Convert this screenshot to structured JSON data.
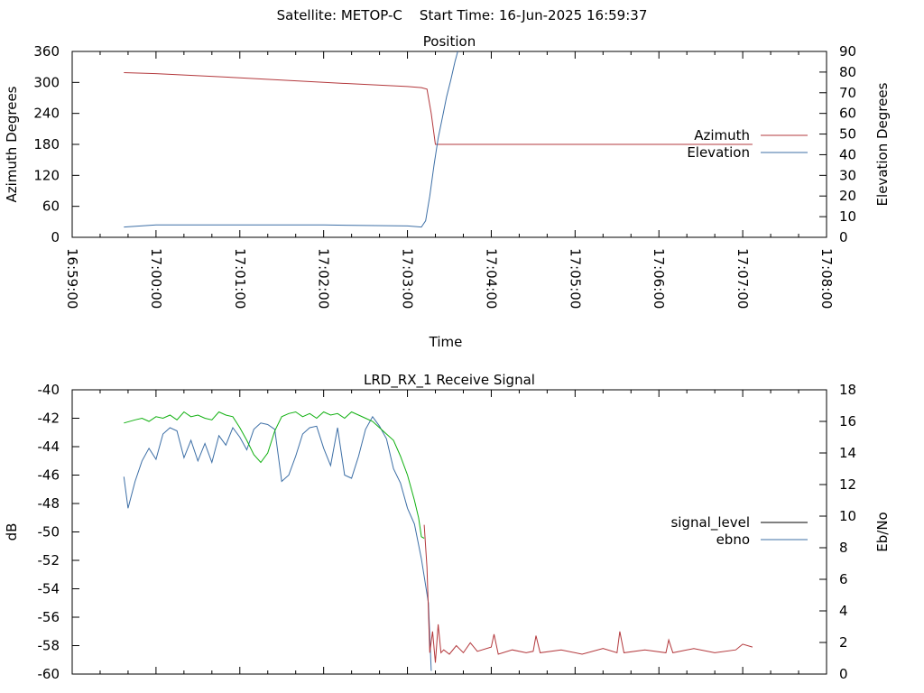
{
  "header": {
    "title": "Satellite: METOP-C    Start Time: 16-Jun-2025 16:59:37"
  },
  "colors": {
    "azimuth": "#b3383c",
    "elevation": "#3d6fa6",
    "signal_level_line": "#000000",
    "ebno_line": "#3d6fa6",
    "signal_level_trace": "#b3383c",
    "secondary_trace": "#10b010"
  },
  "chart_data": [
    {
      "type": "line",
      "title": "Position",
      "xlabel": "Time",
      "ylabel": "Azimuth Degrees",
      "y2label": "Elevation Degrees",
      "ylim": [
        0,
        360
      ],
      "y2lim": [
        0,
        90
      ],
      "yticks": [
        "0",
        "60",
        "120",
        "180",
        "240",
        "300",
        "360"
      ],
      "y2ticks": [
        "0",
        "10",
        "20",
        "30",
        "40",
        "50",
        "60",
        "70",
        "80",
        "90"
      ],
      "xlim": [
        "16:59:00",
        "17:08:00"
      ],
      "xticks": [
        "16:59:00",
        "17:00:00",
        "17:01:00",
        "17:02:00",
        "17:03:00",
        "17:04:00",
        "17:05:00",
        "17:06:00",
        "17:07:00",
        "17:08:00"
      ],
      "legend_position": "right",
      "series": [
        {
          "name": "Azimuth",
          "axis": "left",
          "x": [
            "16:59:37",
            "17:00:00",
            "17:01:00",
            "17:02:00",
            "17:03:00",
            "17:03:10",
            "17:03:14",
            "17:03:17",
            "17:03:20",
            "17:04:00",
            "17:05:00",
            "17:06:00",
            "17:07:00",
            "17:07:07"
          ],
          "y": [
            319,
            317,
            309,
            300,
            292,
            290,
            287,
            240,
            180,
            180,
            180,
            180,
            180,
            180
          ]
        },
        {
          "name": "Elevation",
          "axis": "right",
          "x": [
            "16:59:37",
            "17:00:00",
            "17:01:00",
            "17:02:00",
            "17:03:00",
            "17:03:10",
            "17:03:13",
            "17:03:16",
            "17:03:19",
            "17:03:22",
            "17:03:25",
            "17:03:28",
            "17:03:31",
            "17:03:34",
            "17:03:36"
          ],
          "y": [
            5,
            6,
            6,
            6,
            5.5,
            5,
            8,
            20,
            35,
            48,
            58,
            68,
            76,
            85,
            90
          ]
        }
      ]
    },
    {
      "type": "line",
      "title": "LRD_RX_1 Receive Signal",
      "ylabel": "dB",
      "y2label": "Eb/No",
      "ylim": [
        -60,
        -40
      ],
      "y2lim": [
        0,
        18
      ],
      "yticks": [
        "-60",
        "-58",
        "-56",
        "-54",
        "-52",
        "-50",
        "-48",
        "-46",
        "-44",
        "-42",
        "-40"
      ],
      "y2ticks": [
        "0",
        "2",
        "4",
        "6",
        "8",
        "10",
        "12",
        "14",
        "16",
        "18"
      ],
      "xlim": [
        "16:59:00",
        "17:08:00"
      ],
      "legend_position": "right",
      "legend": [
        "signal_level",
        "ebno"
      ],
      "series": [
        {
          "name": "ebno",
          "axis": "right",
          "x": [
            "16:59:37",
            "16:59:40",
            "16:59:45",
            "16:59:50",
            "16:59:55",
            "17:00:00",
            "17:00:05",
            "17:00:10",
            "17:00:15",
            "17:00:20",
            "17:00:25",
            "17:00:30",
            "17:00:35",
            "17:00:40",
            "17:00:45",
            "17:00:50",
            "17:00:55",
            "17:01:00",
            "17:01:05",
            "17:01:10",
            "17:01:15",
            "17:01:20",
            "17:01:25",
            "17:01:30",
            "17:01:35",
            "17:01:40",
            "17:01:45",
            "17:01:50",
            "17:01:55",
            "17:02:00",
            "17:02:05",
            "17:02:10",
            "17:02:15",
            "17:02:20",
            "17:02:25",
            "17:02:30",
            "17:02:35",
            "17:02:40",
            "17:02:45",
            "17:02:50",
            "17:02:55",
            "17:03:00",
            "17:03:05",
            "17:03:10",
            "17:03:15",
            "17:03:17"
          ],
          "y": [
            12.5,
            10.5,
            12.2,
            13.5,
            14.3,
            13.6,
            15.2,
            15.6,
            15.4,
            13.7,
            14.8,
            13.5,
            14.6,
            13.4,
            15.1,
            14.5,
            15.6,
            15.0,
            14.2,
            15.5,
            15.9,
            15.8,
            15.5,
            12.2,
            12.6,
            13.8,
            15.2,
            15.6,
            15.7,
            14.3,
            13.2,
            15.6,
            12.6,
            12.4,
            13.8,
            15.5,
            16.3,
            15.7,
            14.9,
            13.0,
            12.1,
            10.5,
            9.5,
            7.3,
            4.5,
            0.2
          ]
        },
        {
          "name": "",
          "axis": "right",
          "x": [
            "16:59:37",
            "16:59:45",
            "16:59:50",
            "16:59:55",
            "17:00:00",
            "17:00:05",
            "17:00:10",
            "17:00:15",
            "17:00:20",
            "17:00:25",
            "17:00:30",
            "17:00:35",
            "17:00:40",
            "17:00:45",
            "17:00:50",
            "17:00:55",
            "17:01:00",
            "17:01:05",
            "17:01:10",
            "17:01:15",
            "17:01:20",
            "17:01:25",
            "17:01:30",
            "17:01:35",
            "17:01:40",
            "17:01:45",
            "17:01:50",
            "17:01:55",
            "17:02:00",
            "17:02:05",
            "17:02:10",
            "17:02:15",
            "17:02:20",
            "17:02:25",
            "17:02:30",
            "17:02:35",
            "17:02:40",
            "17:02:45",
            "17:02:50",
            "17:02:55",
            "17:03:00",
            "17:03:05",
            "17:03:08",
            "17:03:10",
            "17:03:12"
          ],
          "y": [
            15.9,
            16.1,
            16.2,
            16.0,
            16.3,
            16.2,
            16.4,
            16.1,
            16.6,
            16.3,
            16.4,
            16.2,
            16.1,
            16.6,
            16.4,
            16.3,
            15.6,
            14.8,
            13.9,
            13.4,
            14.0,
            15.4,
            16.3,
            16.5,
            16.6,
            16.3,
            16.5,
            16.2,
            16.6,
            16.4,
            16.5,
            16.2,
            16.6,
            16.4,
            16.2,
            16.0,
            15.6,
            15.2,
            14.8,
            13.8,
            12.6,
            11.0,
            9.9,
            8.7,
            8.6
          ]
        },
        {
          "name": "signal_level",
          "axis": "left",
          "x": [
            "17:03:12",
            "17:03:14",
            "17:03:16",
            "17:03:18",
            "17:03:20",
            "17:03:22",
            "17:03:24",
            "17:03:26",
            "17:03:30",
            "17:03:35",
            "17:03:40",
            "17:03:45",
            "17:03:50",
            "17:04:00",
            "17:04:02",
            "17:04:05",
            "17:04:15",
            "17:04:25",
            "17:04:30",
            "17:04:32",
            "17:04:35",
            "17:04:50",
            "17:05:05",
            "17:05:20",
            "17:05:30",
            "17:05:32",
            "17:05:35",
            "17:05:50",
            "17:06:05",
            "17:06:07",
            "17:06:10",
            "17:06:25",
            "17:06:40",
            "17:06:55",
            "17:07:00",
            "17:07:07"
          ],
          "y": [
            -49.5,
            -52.5,
            -58.5,
            -57.0,
            -59.2,
            -56.5,
            -58.5,
            -58.3,
            -58.6,
            -58.0,
            -58.5,
            -57.8,
            -58.4,
            -58.1,
            -57.2,
            -58.6,
            -58.3,
            -58.5,
            -58.4,
            -57.3,
            -58.5,
            -58.3,
            -58.6,
            -58.2,
            -58.5,
            -57.0,
            -58.5,
            -58.3,
            -58.5,
            -57.6,
            -58.5,
            -58.2,
            -58.5,
            -58.3,
            -57.9,
            -58.1
          ]
        }
      ]
    }
  ]
}
